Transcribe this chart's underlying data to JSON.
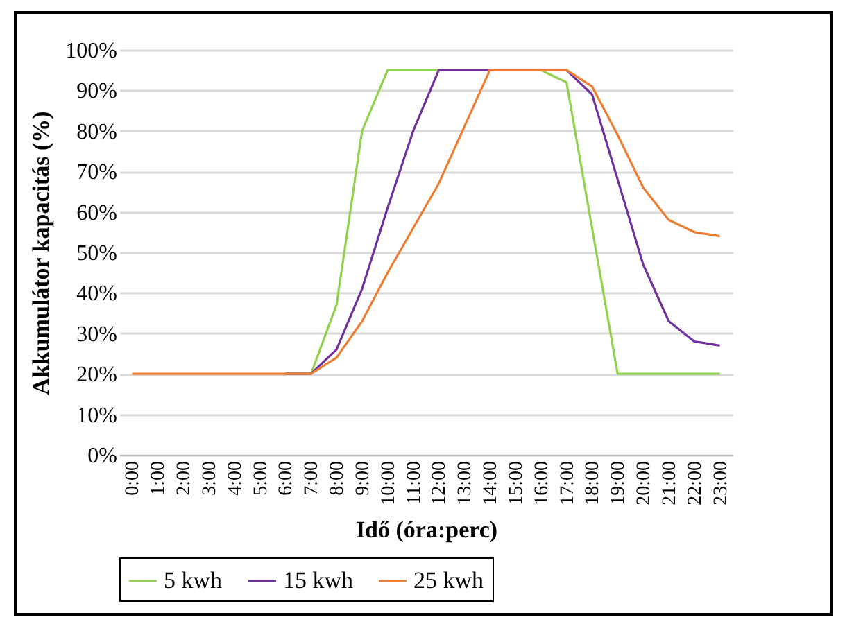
{
  "chart_data": {
    "type": "line",
    "xlabel": "Idő (óra:perc)",
    "ylabel": "Akkumulátor kapacitás (%)",
    "categories": [
      "0:00",
      "1:00",
      "2:00",
      "3:00",
      "4:00",
      "5:00",
      "6:00",
      "7:00",
      "8:00",
      "9:00",
      "10:00",
      "11:00",
      "12:00",
      "13:00",
      "14:00",
      "15:00",
      "16:00",
      "17:00",
      "18:00",
      "19:00",
      "20:00",
      "21:00",
      "22:00",
      "23:00"
    ],
    "series": [
      {
        "name": "5 kwh",
        "color": "#92d050",
        "values": [
          null,
          null,
          null,
          null,
          null,
          null,
          20,
          20,
          37,
          80,
          95,
          95,
          95,
          95,
          95,
          95,
          95,
          92,
          56,
          20,
          20,
          20,
          20,
          20
        ]
      },
      {
        "name": "15 kwh",
        "color": "#7030a0",
        "values": [
          null,
          null,
          null,
          null,
          null,
          null,
          20,
          20,
          26,
          41,
          61,
          80,
          95,
          95,
          95,
          95,
          95,
          95,
          89,
          68,
          47,
          33,
          28,
          27
        ]
      },
      {
        "name": "25 kwh",
        "color": "#ed7d31",
        "values": [
          20,
          20,
          20,
          20,
          20,
          20,
          20,
          20,
          24,
          33,
          45,
          56,
          67,
          81,
          95,
          95,
          95,
          95,
          91,
          79,
          66,
          58,
          55,
          54
        ]
      }
    ],
    "ylim": [
      0,
      100
    ],
    "yticks": [
      {
        "value": 0,
        "label": "0%"
      },
      {
        "value": 10,
        "label": "10%"
      },
      {
        "value": 20,
        "label": "20%"
      },
      {
        "value": 30,
        "label": "30%"
      },
      {
        "value": 40,
        "label": "40%"
      },
      {
        "value": 50,
        "label": "50%"
      },
      {
        "value": 60,
        "label": "60%"
      },
      {
        "value": 70,
        "label": "70%"
      },
      {
        "value": 80,
        "label": "80%"
      },
      {
        "value": 90,
        "label": "90%"
      },
      {
        "value": 100,
        "label": "100%"
      }
    ],
    "grid": "y",
    "legend": "bottom",
    "marker": "none",
    "line_style": "solid"
  }
}
